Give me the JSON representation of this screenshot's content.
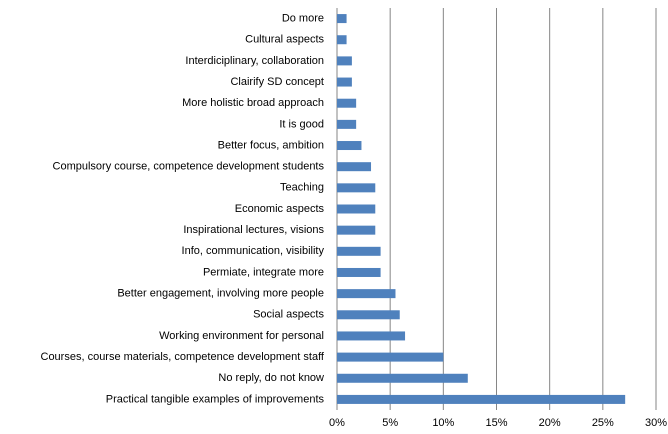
{
  "chart_data": {
    "type": "barh",
    "categories": [
      "Do more",
      "Cultural aspects",
      "Interdiciplinary, collaboration",
      "Clairify SD concept",
      "More holistic broad approach",
      "It is good",
      "Better focus, ambition",
      "Compulsory course, competence development students",
      "Teaching",
      "Economic aspects",
      "Inspirational lectures, visions",
      "Info, communication, visibility",
      "Permiate, integrate more",
      "Better engagement, involving more people",
      "Social aspects",
      "Working environment for personal",
      "Courses, course materials, competence development staff",
      "No reply, do not know",
      "Practical tangible examples of improvements"
    ],
    "values": [
      0.9,
      0.9,
      1.4,
      1.4,
      1.8,
      1.8,
      2.3,
      3.2,
      3.6,
      3.6,
      3.6,
      4.1,
      4.1,
      5.5,
      5.9,
      6.4,
      10.0,
      12.3,
      27.1
    ],
    "color": "#4f81bd",
    "xlim": [
      0,
      30
    ],
    "xticks": [
      {
        "value": 0,
        "label": "0%"
      },
      {
        "value": 5,
        "label": "5%"
      },
      {
        "value": 10,
        "label": "10%"
      },
      {
        "value": 15,
        "label": "15%"
      },
      {
        "value": 20,
        "label": "20%"
      },
      {
        "value": 25,
        "label": "25%"
      },
      {
        "value": 30,
        "label": "30%"
      }
    ],
    "grid": true
  }
}
